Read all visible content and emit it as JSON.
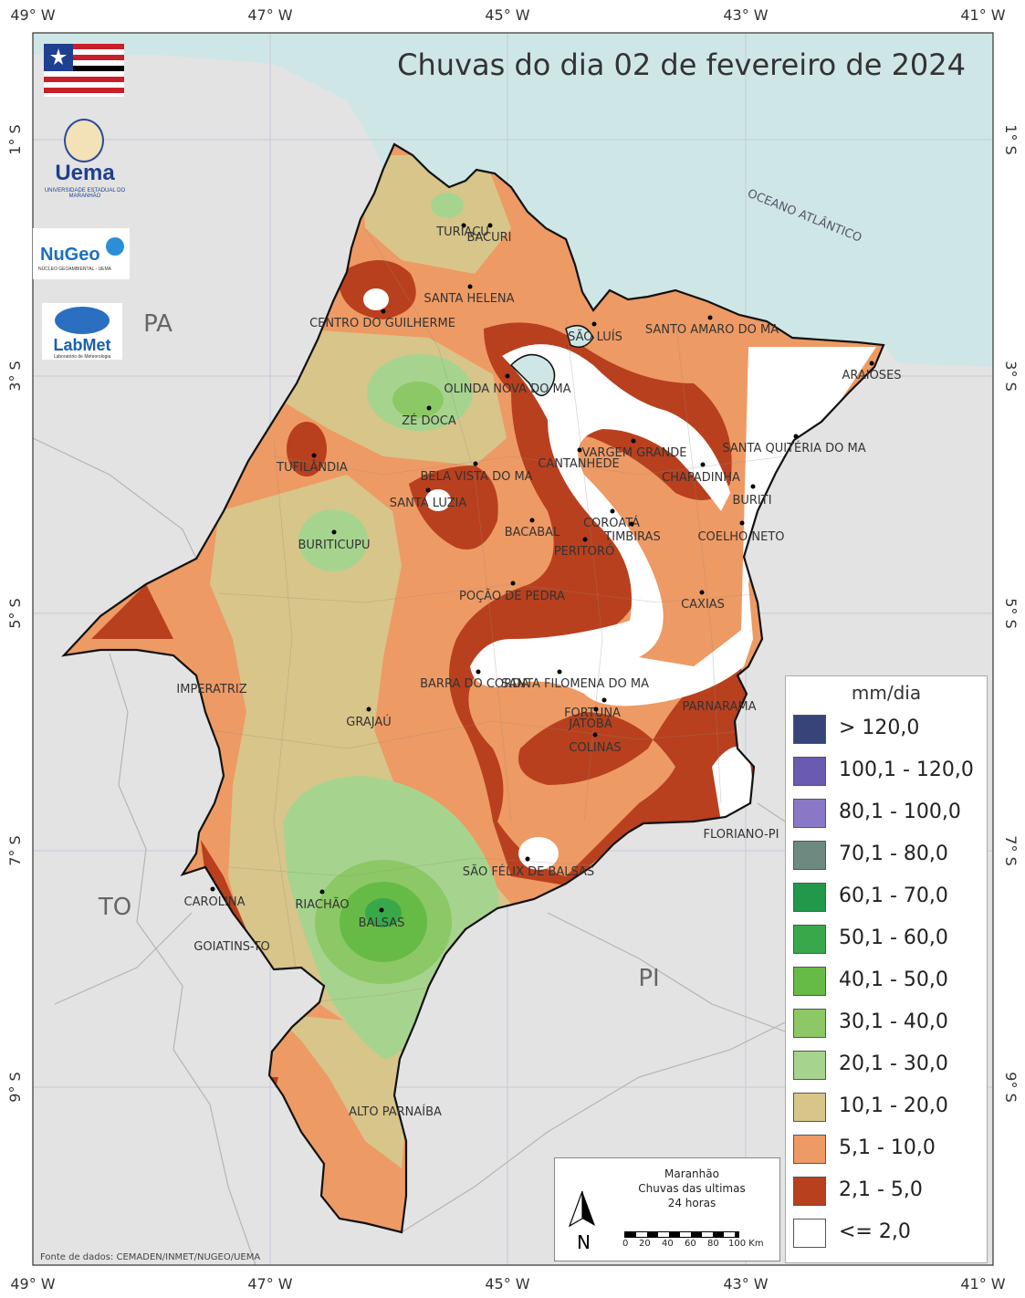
{
  "title": "Chuvas do dia 02 de fevereiro de 2024",
  "lon_ticks": [
    "49° W",
    "47° W",
    "45° W",
    "43° W",
    "41° W"
  ],
  "lat_ticks": [
    "1° S",
    "3° S",
    "5° S",
    "7° S",
    "9° S"
  ],
  "ocean_label": "OCEANO ATLÂNTICO",
  "regions": [
    "PA",
    "TO",
    "PI"
  ],
  "cities": [
    "TURIAÇU",
    "BACURI",
    "SANTA HELENA",
    "CENTRO DO GUILHERME",
    "SÃO LUÍS",
    "SANTO AMARO DO MA",
    "ARAIOSES",
    "OLINDA NOVA DO MA",
    "ZÉ DOCA",
    "VARGEM GRANDE",
    "SANTA QUITÉRIA DO MA",
    "CANTANHEDE",
    "CHAPADINHA",
    "TUFILÂNDIA",
    "BELA VISTA DO MA",
    "SANTA LUZIA",
    "BURITI",
    "COROATÁ",
    "TIMBIRAS",
    "COELHO NETO",
    "BACABAL",
    "PERITORÓ",
    "BURITICUPU",
    "POÇÃO DE PEDRA",
    "CAXIAS",
    "IMPERATRIZ",
    "BARRA DO CORDA",
    "SANTA FILOMENA DO MA",
    "FORTUNA",
    "PARNARAMA",
    "JATOBÁ",
    "GRAJAÚ",
    "COLINAS",
    "FLORIANO-PI",
    "SÃO FÉLIX DE BALSAS",
    "CAROLINA",
    "RIACHÃO",
    "BALSAS",
    "GOIATINS-TO",
    "ALTO PARNAÍBA"
  ],
  "legend": {
    "title": "mm/dia",
    "items": [
      {
        "label": "> 120,0",
        "color": "#36447a"
      },
      {
        "label": "100,1 - 120,0",
        "color": "#6a5ab0"
      },
      {
        "label": "80,1 - 100,0",
        "color": "#8a78c6"
      },
      {
        "label": "70,1 - 80,0",
        "color": "#6e8a80"
      },
      {
        "label": "60,1 - 70,0",
        "color": "#22984a"
      },
      {
        "label": "50,1 - 60,0",
        "color": "#38a84a"
      },
      {
        "label": "40,1 - 50,0",
        "color": "#66bb46"
      },
      {
        "label": "30,1 - 40,0",
        "color": "#8cc866"
      },
      {
        "label": "20,1 - 30,0",
        "color": "#a6d48e"
      },
      {
        "label": "10,1 - 20,0",
        "color": "#d8c58a"
      },
      {
        "label": "5,1 - 10,0",
        "color": "#ee9a64"
      },
      {
        "label": "2,1 - 5,0",
        "color": "#b8401e"
      },
      {
        "label": "<= 2,0",
        "color": "#ffffff"
      }
    ]
  },
  "info": {
    "line1": "Maranhão",
    "line2": "Chuvas das ultimas",
    "line3": "24 horas",
    "north": "N",
    "scale_labels": [
      "0",
      "20",
      "40",
      "60",
      "80",
      "100 Km"
    ]
  },
  "source": "Fonte de dados: CEMADEN/INMET/NUGEO/UEMA",
  "logos": {
    "uema": "Uema",
    "uema_sub": "UNIVERSIDADE ESTADUAL DO MARANHÃO",
    "nugeo": "NuGeo",
    "nugeo_sub": "NÚCLEO GEOAMBIENTAL - UEMA",
    "labmet": "LabMet",
    "labmet_sub": "Laboratório de Meteorologia"
  }
}
